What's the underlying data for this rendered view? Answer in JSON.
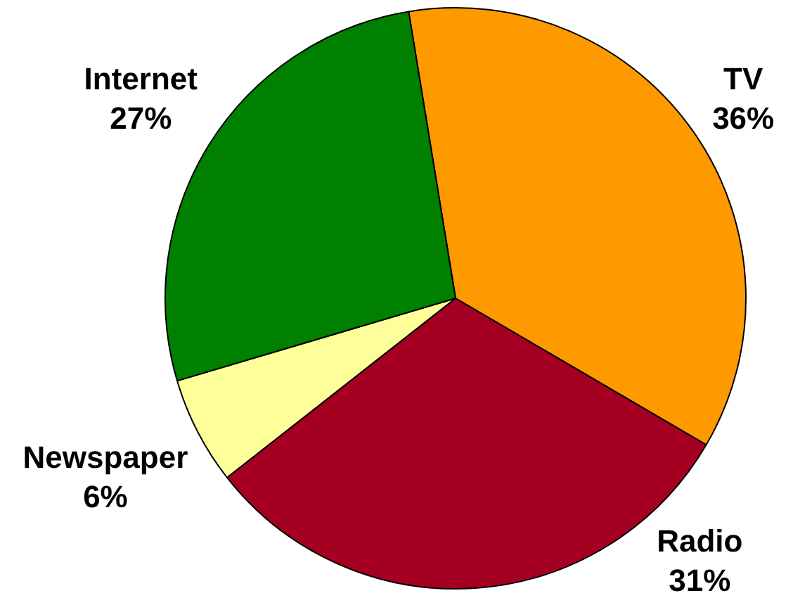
{
  "chart_data": {
    "type": "pie",
    "categories": [
      "TV",
      "Radio",
      "Newspaper",
      "Internet"
    ],
    "values": [
      36,
      31,
      6,
      27
    ],
    "value_labels": [
      "36%",
      "31%",
      "6%",
      "27%"
    ],
    "colors": [
      "#ff9900",
      "#a50021",
      "#ffff99",
      "#008000"
    ]
  }
}
